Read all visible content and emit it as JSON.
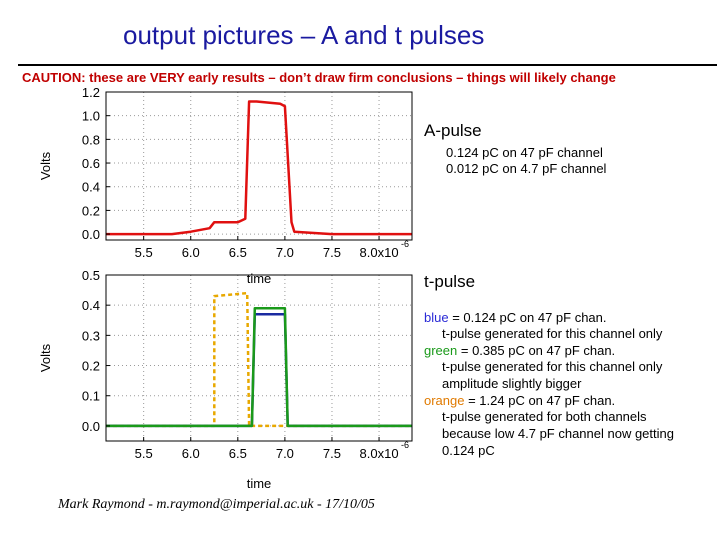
{
  "slide": {
    "title": "output pictures – A and t pulses",
    "caution": "CAUTION: these are VERY early results – don’t draw firm conclusions – things will likely change",
    "footer": "Mark Raymond - m.raymond@imperial.ac.uk - 17/10/05"
  },
  "a_pulse": {
    "heading": "A-pulse",
    "line1": "0.124 pC on 47 pF channel",
    "line2": "0.012 pC on 4.7 pF channel"
  },
  "t_pulse": {
    "heading": "t-pulse",
    "blue_word": "blue",
    "blue_text": " = 0.124 pC on 47 pF chan.",
    "blue_note": "t-pulse generated for this channel only",
    "green_word": "green",
    "green_text": " = 0.385 pC on 47 pF chan.",
    "green_note1": "t-pulse generated for this channel only",
    "green_note2": "amplitude slightly bigger",
    "orange_word": "orange",
    "orange_text": " = 1.24 pC on 47 pF chan.",
    "orange_note1": "t-pulse generated for both channels",
    "orange_note2": "because low 4.7 pF channel now getting",
    "orange_note3": "0.124 pC"
  },
  "chart_data": [
    {
      "type": "line",
      "ylabel": "Volts",
      "xlabel": "",
      "xlim": [
        5.1,
        8.35
      ],
      "ylim": [
        -0.05,
        1.2
      ],
      "x_exponent_label": "-6",
      "xticks": [
        5.5,
        6.0,
        6.5,
        7.0,
        7.5,
        8.0
      ],
      "xtick_labels": [
        "5.5",
        "6.0",
        "6.5",
        "7.0",
        "7.5",
        "8.0x10"
      ],
      "yticks": [
        0.0,
        0.2,
        0.4,
        0.6,
        0.8,
        1.0,
        1.2
      ],
      "ytick_labels": [
        "0.0",
        "0.2",
        "0.4",
        "0.6",
        "0.8",
        "1.0",
        "1.2"
      ],
      "grid": true,
      "series": [
        {
          "color": "#e01010",
          "x": [
            5.1,
            5.8,
            6.0,
            6.2,
            6.25,
            6.5,
            6.58,
            6.62,
            6.7,
            6.95,
            7.0,
            7.07,
            7.1,
            7.5,
            8.0,
            8.35
          ],
          "y": [
            0.0,
            0.0,
            0.02,
            0.05,
            0.1,
            0.1,
            0.13,
            1.12,
            1.12,
            1.1,
            1.08,
            0.1,
            0.02,
            0.0,
            0.0,
            0.0
          ]
        }
      ]
    },
    {
      "type": "line",
      "ylabel": "Volts",
      "xlabel": "time",
      "xlim": [
        5.1,
        8.35
      ],
      "ylim": [
        -0.05,
        0.5
      ],
      "x_exponent_label": "-6",
      "xticks": [
        5.5,
        6.0,
        6.5,
        7.0,
        7.5,
        8.0
      ],
      "xtick_labels": [
        "5.5",
        "6.0",
        "6.5",
        "7.0",
        "7.5",
        "8.0x10"
      ],
      "yticks": [
        0.0,
        0.1,
        0.2,
        0.3,
        0.4,
        0.5
      ],
      "ytick_labels": [
        "0.0",
        "0.1",
        "0.2",
        "0.3",
        "0.4",
        "0.5"
      ],
      "grid": true,
      "series": [
        {
          "color": "#e8a800",
          "dashed": true,
          "x": [
            5.1,
            6.2,
            6.25,
            6.25,
            6.6,
            6.6,
            6.62,
            8.35
          ],
          "y": [
            0.0,
            0.0,
            0.0,
            0.43,
            0.44,
            0.44,
            0.0,
            0.0
          ]
        },
        {
          "color": "#1a2aa0",
          "x": [
            5.1,
            6.65,
            6.68,
            7.0,
            7.03,
            8.35
          ],
          "y": [
            0.0,
            0.0,
            0.37,
            0.37,
            0.0,
            0.0
          ]
        },
        {
          "color": "#1a9a1a",
          "x": [
            5.1,
            6.65,
            6.68,
            7.0,
            7.03,
            8.35
          ],
          "y": [
            0.0,
            0.0,
            0.39,
            0.39,
            0.0,
            0.0
          ]
        }
      ]
    }
  ]
}
